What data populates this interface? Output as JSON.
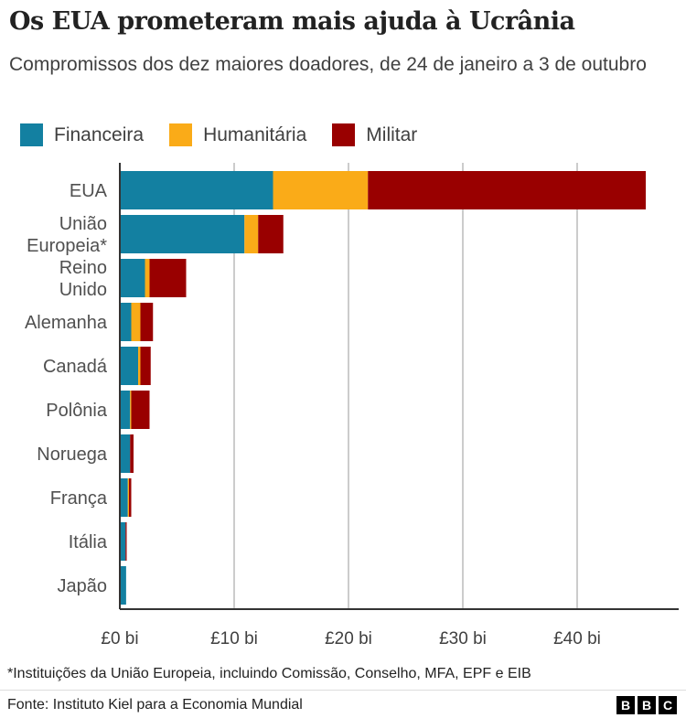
{
  "chart_data": {
    "type": "bar",
    "orientation": "horizontal",
    "stacked": true,
    "title": "Os EUA prometeram mais ajuda à Ucrânia",
    "subtitle": "Compromissos dos dez maiores doadores, de 24 de janeiro a 3 de outubro",
    "categories": [
      "EUA",
      "União Europeia*",
      "Reino Unido",
      "Alemanha",
      "Canadá",
      "Polônia",
      "Noruega",
      "França",
      "Itália",
      "Japão"
    ],
    "series": [
      {
        "name": "Financeira",
        "color": "#1380A1",
        "values": [
          13.4,
          10.9,
          2.2,
          1.0,
          1.6,
          0.9,
          0.9,
          0.7,
          0.5,
          0.55
        ]
      },
      {
        "name": "Humanitária",
        "color": "#FAAB18",
        "values": [
          8.3,
          1.2,
          0.4,
          0.8,
          0.2,
          0.1,
          0.0,
          0.1,
          0.0,
          0.0
        ]
      },
      {
        "name": "Militar",
        "color": "#990000",
        "values": [
          24.3,
          2.2,
          3.2,
          1.1,
          0.9,
          1.6,
          0.3,
          0.2,
          0.1,
          0.0
        ]
      }
    ],
    "xlim": [
      0,
      49
    ],
    "xticks": [
      0,
      10,
      20,
      30,
      40
    ],
    "xtick_labels": [
      "£0 bi",
      "£10 bi",
      "£20 bi",
      "£30 bi",
      "£40 bi"
    ],
    "grid": true,
    "legend": "top-left"
  },
  "footnote": "*Instituições da União Europeia, incluindo Comissão, Conselho, MFA, EPF e EIB",
  "source": "Fonte: Instituto Kiel para a Economia Mundial",
  "logo": [
    "B",
    "B",
    "C"
  ]
}
